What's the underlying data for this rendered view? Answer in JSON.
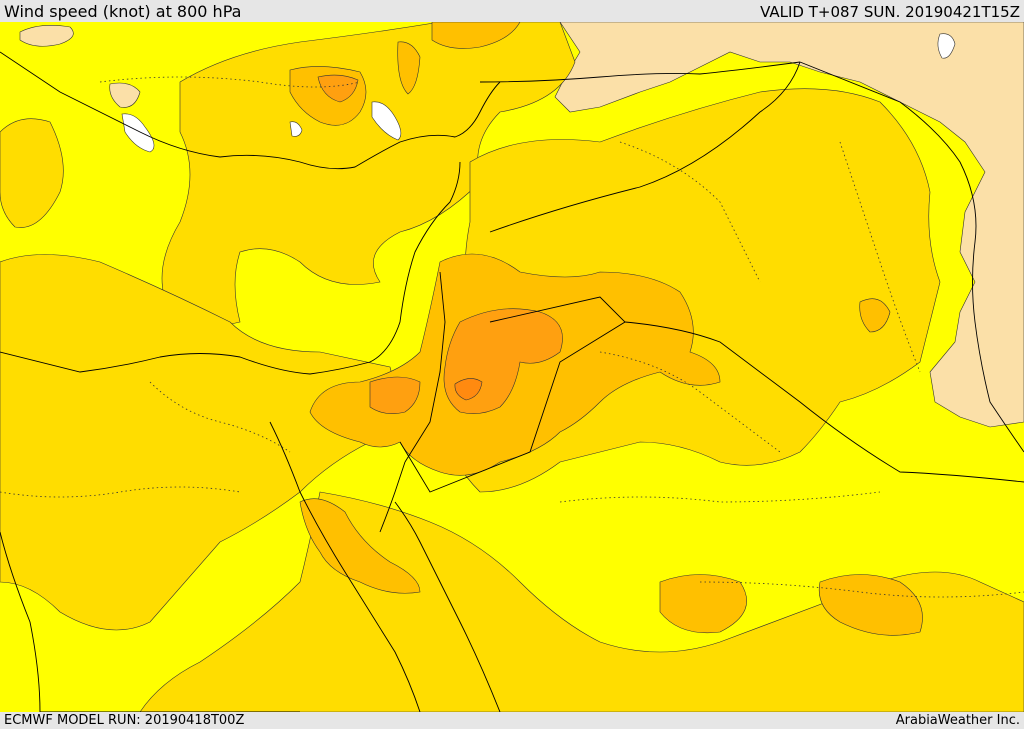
{
  "header": {
    "title": "Wind speed (knot) at 800 hPa",
    "valid_time": "VALID T+087 SUN. 20190421T15Z"
  },
  "footer": {
    "model_run": "ECMWF MODEL RUN: 20190418T00Z",
    "credit": "ArabiaWeather Inc."
  },
  "colors": {
    "band_lowest": "#fbe0a8",
    "band_low": "#ffff00",
    "band_mid": "#ffdd00",
    "band_high": "#ffc000",
    "band_higher": "#ffa010",
    "band_highest": "#ff8a10",
    "water_lake": "#ffffff",
    "borders": "#000000"
  }
}
